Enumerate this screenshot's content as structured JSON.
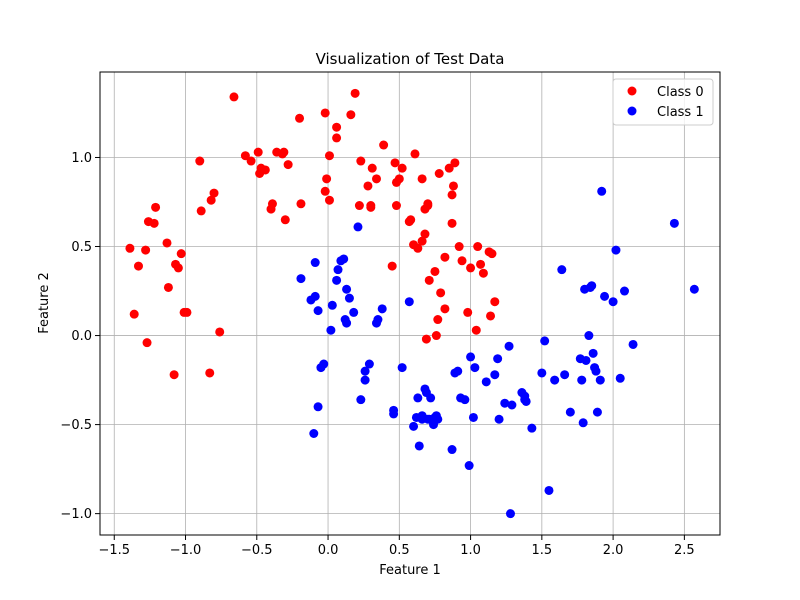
{
  "chart_data": {
    "type": "scatter",
    "title": "Visualization of Test Data",
    "xlabel": "Feature 1",
    "ylabel": "Feature 2",
    "xlim": [
      -1.6,
      2.75
    ],
    "ylim": [
      -1.12,
      1.48
    ],
    "x_ticks": [
      -1.5,
      -1.0,
      -0.5,
      0.0,
      0.5,
      1.0,
      1.5,
      2.0,
      2.5
    ],
    "x_tick_labels": [
      "−1.5",
      "−1.0",
      "−0.5",
      "0.0",
      "0.5",
      "1.0",
      "1.5",
      "2.0",
      "2.5"
    ],
    "y_ticks": [
      -1.0,
      -0.5,
      0.0,
      0.5,
      1.0
    ],
    "y_tick_labels": [
      "−1.0",
      "−0.5",
      "0.0",
      "0.5",
      "1.0"
    ],
    "grid": true,
    "legend_position": "top-right",
    "series": [
      {
        "name": "Class 0",
        "color": "#ff0000",
        "points": [
          [
            -1.39,
            0.49
          ],
          [
            -1.36,
            0.12
          ],
          [
            -1.33,
            0.39
          ],
          [
            -1.28,
            0.48
          ],
          [
            -1.27,
            -0.04
          ],
          [
            -1.26,
            0.64
          ],
          [
            -1.22,
            0.63
          ],
          [
            -1.21,
            0.72
          ],
          [
            -1.13,
            0.52
          ],
          [
            -1.12,
            0.27
          ],
          [
            -1.08,
            -0.22
          ],
          [
            -1.07,
            0.4
          ],
          [
            -1.05,
            0.38
          ],
          [
            -1.03,
            0.46
          ],
          [
            -1.01,
            0.13
          ],
          [
            -0.99,
            0.13
          ],
          [
            -0.9,
            0.98
          ],
          [
            -0.89,
            0.7
          ],
          [
            -0.83,
            -0.21
          ],
          [
            -0.82,
            0.76
          ],
          [
            -0.8,
            0.8
          ],
          [
            -0.76,
            0.02
          ],
          [
            -0.66,
            1.34
          ],
          [
            -0.58,
            1.01
          ],
          [
            -0.54,
            0.98
          ],
          [
            -0.49,
            1.03
          ],
          [
            -0.48,
            0.91
          ],
          [
            -0.47,
            0.94
          ],
          [
            -0.44,
            0.93
          ],
          [
            -0.4,
            0.71
          ],
          [
            -0.39,
            0.74
          ],
          [
            -0.36,
            1.03
          ],
          [
            -0.32,
            1.02
          ],
          [
            -0.31,
            1.03
          ],
          [
            -0.3,
            0.65
          ],
          [
            -0.28,
            0.96
          ],
          [
            -0.2,
            1.22
          ],
          [
            -0.19,
            0.74
          ],
          [
            -0.02,
            1.25
          ],
          [
            -0.02,
            0.81
          ],
          [
            -0.01,
            0.88
          ],
          [
            0.01,
            0.76
          ],
          [
            0.01,
            1.01
          ],
          [
            0.06,
            1.17
          ],
          [
            0.06,
            1.11
          ],
          [
            0.16,
            1.24
          ],
          [
            0.19,
            1.36
          ],
          [
            0.22,
            0.73
          ],
          [
            0.23,
            0.98
          ],
          [
            0.28,
            0.84
          ],
          [
            0.3,
            0.72
          ],
          [
            0.3,
            0.73
          ],
          [
            0.31,
            0.94
          ],
          [
            0.34,
            0.88
          ],
          [
            0.39,
            1.07
          ],
          [
            0.45,
            0.39
          ],
          [
            0.47,
            0.97
          ],
          [
            0.48,
            0.86
          ],
          [
            0.48,
            0.73
          ],
          [
            0.5,
            0.88
          ],
          [
            0.52,
            0.94
          ],
          [
            0.57,
            0.64
          ],
          [
            0.58,
            0.65
          ],
          [
            0.6,
            0.51
          ],
          [
            0.61,
            1.02
          ],
          [
            0.63,
            0.49
          ],
          [
            0.66,
            0.88
          ],
          [
            0.66,
            0.53
          ],
          [
            0.68,
            0.57
          ],
          [
            0.68,
            0.71
          ],
          [
            0.69,
            -0.02
          ],
          [
            0.7,
            0.73
          ],
          [
            0.7,
            0.74
          ],
          [
            0.71,
            0.31
          ],
          [
            0.75,
            0.36
          ],
          [
            0.76,
            0.0
          ],
          [
            0.77,
            0.09
          ],
          [
            0.78,
            0.91
          ],
          [
            0.79,
            0.24
          ],
          [
            0.82,
            0.44
          ],
          [
            0.82,
            0.15
          ],
          [
            0.85,
            0.94
          ],
          [
            0.87,
            0.63
          ],
          [
            0.87,
            0.79
          ],
          [
            0.88,
            0.84
          ],
          [
            0.89,
            0.97
          ],
          [
            0.92,
            0.5
          ],
          [
            0.94,
            0.42
          ],
          [
            0.98,
            0.13
          ],
          [
            1.0,
            0.38
          ],
          [
            1.04,
            0.03
          ],
          [
            1.05,
            0.5
          ],
          [
            1.07,
            0.4
          ],
          [
            1.09,
            0.35
          ],
          [
            1.13,
            0.47
          ],
          [
            1.14,
            0.11
          ],
          [
            1.15,
            0.46
          ],
          [
            1.17,
            0.19
          ]
        ]
      },
      {
        "name": "Class 1",
        "color": "#0000ff",
        "points": [
          [
            -0.19,
            0.32
          ],
          [
            -0.12,
            0.2
          ],
          [
            -0.09,
            0.22
          ],
          [
            -0.09,
            0.41
          ],
          [
            -0.07,
            -0.4
          ],
          [
            -0.07,
            0.14
          ],
          [
            -0.05,
            -0.18
          ],
          [
            -0.03,
            -0.16
          ],
          [
            -0.1,
            -0.55
          ],
          [
            0.02,
            0.03
          ],
          [
            0.03,
            0.17
          ],
          [
            0.06,
            0.31
          ],
          [
            0.07,
            0.37
          ],
          [
            0.09,
            0.42
          ],
          [
            0.11,
            0.43
          ],
          [
            0.12,
            0.09
          ],
          [
            0.13,
            0.07
          ],
          [
            0.13,
            0.26
          ],
          [
            0.15,
            0.21
          ],
          [
            0.18,
            0.13
          ],
          [
            0.21,
            0.61
          ],
          [
            0.23,
            -0.36
          ],
          [
            0.26,
            -0.2
          ],
          [
            0.26,
            -0.25
          ],
          [
            0.29,
            -0.16
          ],
          [
            0.34,
            0.07
          ],
          [
            0.35,
            0.09
          ],
          [
            0.38,
            0.15
          ],
          [
            0.46,
            -0.42
          ],
          [
            0.46,
            -0.44
          ],
          [
            0.52,
            -0.18
          ],
          [
            0.57,
            0.19
          ],
          [
            0.6,
            -0.51
          ],
          [
            0.62,
            -0.46
          ],
          [
            0.63,
            -0.35
          ],
          [
            0.64,
            -0.62
          ],
          [
            0.66,
            -0.45
          ],
          [
            0.66,
            -0.47
          ],
          [
            0.68,
            -0.3
          ],
          [
            0.69,
            -0.32
          ],
          [
            0.7,
            -0.47
          ],
          [
            0.71,
            -0.47
          ],
          [
            0.72,
            -0.35
          ],
          [
            0.73,
            -0.47
          ],
          [
            0.74,
            -0.5
          ],
          [
            0.75,
            -0.46
          ],
          [
            0.76,
            -0.45
          ],
          [
            0.77,
            -0.47
          ],
          [
            0.87,
            -0.64
          ],
          [
            0.89,
            -0.21
          ],
          [
            0.91,
            -0.2
          ],
          [
            0.93,
            -0.35
          ],
          [
            0.96,
            -0.36
          ],
          [
            0.99,
            -0.73
          ],
          [
            1.0,
            -0.12
          ],
          [
            1.02,
            -0.46
          ],
          [
            1.03,
            -0.18
          ],
          [
            1.11,
            -0.26
          ],
          [
            1.17,
            -0.22
          ],
          [
            1.19,
            -0.13
          ],
          [
            1.2,
            -0.47
          ],
          [
            1.24,
            -0.38
          ],
          [
            1.27,
            -0.06
          ],
          [
            1.29,
            -0.39
          ],
          [
            1.28,
            -1.0
          ],
          [
            1.36,
            -0.32
          ],
          [
            1.38,
            -0.34
          ],
          [
            1.38,
            -0.36
          ],
          [
            1.39,
            -0.37
          ],
          [
            1.43,
            -0.52
          ],
          [
            1.5,
            -0.21
          ],
          [
            1.52,
            -0.03
          ],
          [
            1.55,
            -0.87
          ],
          [
            1.59,
            -0.25
          ],
          [
            1.64,
            0.37
          ],
          [
            1.66,
            -0.22
          ],
          [
            1.7,
            -0.43
          ],
          [
            1.77,
            -0.13
          ],
          [
            1.78,
            -0.25
          ],
          [
            1.79,
            -0.49
          ],
          [
            1.8,
            0.26
          ],
          [
            1.81,
            -0.14
          ],
          [
            1.83,
            0.0
          ],
          [
            1.84,
            0.27
          ],
          [
            1.85,
            0.28
          ],
          [
            1.86,
            -0.1
          ],
          [
            1.87,
            -0.18
          ],
          [
            1.88,
            -0.2
          ],
          [
            1.89,
            -0.43
          ],
          [
            1.91,
            -0.25
          ],
          [
            1.92,
            0.81
          ],
          [
            1.94,
            0.22
          ],
          [
            2.0,
            0.19
          ],
          [
            2.02,
            0.48
          ],
          [
            2.05,
            -0.24
          ],
          [
            2.08,
            0.25
          ],
          [
            2.14,
            -0.05
          ],
          [
            2.43,
            0.63
          ],
          [
            2.57,
            0.26
          ]
        ]
      }
    ]
  }
}
